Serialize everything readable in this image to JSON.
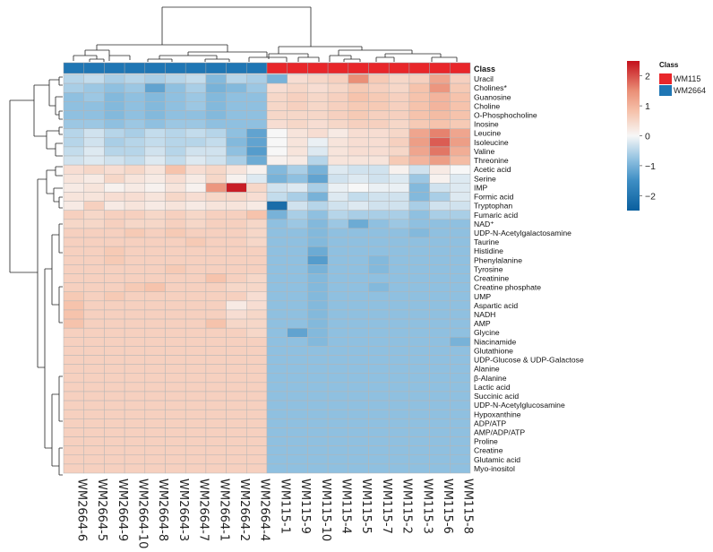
{
  "chart_data": {
    "type": "heatmap",
    "title": "",
    "annotation_title": "Class",
    "columns": [
      "WM2664-6",
      "WM2664-5",
      "WM2664-9",
      "WM2664-10",
      "WM2664-8",
      "WM2664-3",
      "WM2664-7",
      "WM2664-1",
      "WM2664-2",
      "WM2664-4",
      "WM115-1",
      "WM115-9",
      "WM115-10",
      "WM115-4",
      "WM115-5",
      "WM115-7",
      "WM115-2",
      "WM115-3",
      "WM115-6",
      "WM115-8"
    ],
    "column_classes": [
      "WM2664",
      "WM2664",
      "WM2664",
      "WM2664",
      "WM2664",
      "WM2664",
      "WM2664",
      "WM2664",
      "WM2664",
      "WM2664",
      "WM115",
      "WM115",
      "WM115",
      "WM115",
      "WM115",
      "WM115",
      "WM115",
      "WM115",
      "WM115",
      "WM115"
    ],
    "classes": [
      {
        "name": "WM115",
        "color": "#e8262a"
      },
      {
        "name": "WM2664",
        "color": "#1f76b4"
      }
    ],
    "rows": [
      "Uracil",
      "Cholines*",
      "Guanosine",
      "Choline",
      "O-Phosphocholine",
      "Inosine",
      "Leucine",
      "Isoleucine",
      "Valine",
      "Threonine",
      "Acetic acid",
      "Serine",
      "IMP",
      "Formic acid",
      "Tryptophan",
      "Fumaric acid",
      "NAD⁺",
      "UDP-N-Acetylgalactosamine",
      "Taurine",
      "Histidine",
      "Phenylalanine",
      "Tyrosine",
      "Creatinine",
      "Creatine phosphate",
      "UMP",
      "Aspartic acid",
      "NADH",
      "AMP",
      "Glycine",
      "Niacinamide",
      "Glutathione",
      "UDP-Glucose & UDP-Galactose",
      "Alanine",
      "β-Alanine",
      "Lactic acid",
      "Succinic acid",
      "UDP-N-Acetylglucosamine",
      "Hypoxanthine",
      "ADP/ATP",
      "AMP/ADP/ATP",
      "Proline",
      "Creatine",
      "Glutamic acid",
      "Myo-inositol"
    ],
    "values": [
      [
        -0.5,
        -0.4,
        -0.6,
        -0.5,
        -0.6,
        -0.5,
        -0.4,
        -0.9,
        -0.5,
        -0.6,
        -1.0,
        0.4,
        0.5,
        0.6,
        1.5,
        0.7,
        0.5,
        0.6,
        1.2,
        0.6
      ],
      [
        -0.6,
        -0.7,
        -0.8,
        -0.7,
        -1.2,
        -0.8,
        -0.6,
        -1.0,
        -0.9,
        -0.7,
        0.4,
        0.5,
        0.4,
        0.5,
        0.7,
        0.6,
        0.5,
        0.8,
        1.4,
        0.7
      ],
      [
        -0.8,
        -0.7,
        -0.9,
        -0.8,
        -0.9,
        -0.8,
        -0.7,
        -0.9,
        -0.8,
        -0.8,
        0.5,
        0.6,
        0.5,
        0.6,
        0.8,
        0.7,
        0.6,
        0.8,
        1.0,
        0.8
      ],
      [
        -0.8,
        -0.8,
        -0.9,
        -0.8,
        -0.9,
        -0.8,
        -0.7,
        -0.9,
        -0.8,
        -0.8,
        0.5,
        0.6,
        0.5,
        0.6,
        0.7,
        0.7,
        0.6,
        0.8,
        1.0,
        0.8
      ],
      [
        -0.8,
        -0.8,
        -0.9,
        -0.8,
        -0.9,
        -0.8,
        -0.8,
        -0.9,
        -0.8,
        -0.8,
        0.5,
        0.5,
        0.5,
        0.6,
        0.7,
        0.6,
        0.6,
        0.8,
        0.9,
        0.8
      ],
      [
        -0.7,
        -0.7,
        -0.8,
        -0.7,
        -0.8,
        -0.7,
        -0.7,
        -0.8,
        -0.8,
        -0.8,
        0.4,
        0.5,
        0.4,
        0.5,
        0.6,
        0.6,
        0.5,
        0.7,
        0.8,
        0.7
      ],
      [
        -0.5,
        -0.3,
        -0.5,
        -0.6,
        -0.4,
        -0.5,
        -0.4,
        -0.5,
        -0.8,
        -1.2,
        0.0,
        0.3,
        0.4,
        0.2,
        0.4,
        0.4,
        0.5,
        1.2,
        1.6,
        1.2
      ],
      [
        -0.5,
        -0.3,
        -0.6,
        -0.5,
        -0.4,
        -0.5,
        -0.5,
        -0.4,
        -0.9,
        -1.2,
        0.0,
        0.3,
        -0.1,
        0.3,
        0.4,
        0.4,
        0.6,
        1.3,
        1.9,
        1.3
      ],
      [
        -0.4,
        -0.2,
        -0.5,
        -0.5,
        -0.3,
        -0.5,
        -0.3,
        -0.3,
        -0.8,
        -1.3,
        0.0,
        0.3,
        -0.2,
        0.3,
        0.4,
        0.4,
        0.5,
        1.2,
        1.7,
        1.1
      ],
      [
        -0.3,
        -0.2,
        -0.3,
        -0.4,
        -0.2,
        -0.4,
        -0.2,
        -0.3,
        -0.6,
        -1.1,
        0.1,
        0.2,
        -0.5,
        0.3,
        0.3,
        0.3,
        0.7,
        1.0,
        1.3,
        0.9
      ],
      [
        0.4,
        0.5,
        0.4,
        0.5,
        0.3,
        0.8,
        0.4,
        0.5,
        0.3,
        0.1,
        -0.9,
        -0.6,
        -1.0,
        -0.2,
        -0.3,
        -0.3,
        0.1,
        -0.3,
        0.2,
        0.0
      ],
      [
        0.3,
        0.2,
        0.5,
        0.3,
        0.2,
        0.4,
        0.2,
        0.5,
        0.1,
        -0.2,
        -1.0,
        -0.8,
        -1.2,
        -0.3,
        -0.2,
        -0.3,
        -0.2,
        -0.7,
        0.1,
        -0.2
      ],
      [
        0.2,
        0.3,
        0.1,
        0.2,
        0.1,
        0.3,
        0.1,
        1.4,
        2.4,
        0.5,
        -0.3,
        -0.2,
        -0.6,
        -0.1,
        0.0,
        -0.1,
        -0.1,
        -0.9,
        -0.3,
        -0.2
      ],
      [
        0.3,
        0.3,
        0.4,
        0.4,
        0.3,
        0.5,
        0.4,
        0.5,
        0.5,
        0.4,
        -0.4,
        -0.6,
        -1.0,
        -0.2,
        -0.4,
        -0.3,
        -0.3,
        -0.9,
        -0.6,
        -0.2
      ],
      [
        0.2,
        0.6,
        0.2,
        0.3,
        0.2,
        0.3,
        0.2,
        0.3,
        0.3,
        0.2,
        -2.2,
        -0.3,
        -0.5,
        -0.3,
        -0.2,
        -0.3,
        -0.3,
        -0.6,
        -0.3,
        -0.3
      ],
      [
        0.6,
        0.5,
        0.6,
        0.6,
        0.5,
        0.6,
        0.5,
        0.6,
        0.6,
        0.8,
        -1.0,
        -0.6,
        -0.8,
        -0.5,
        -0.6,
        -0.6,
        -0.6,
        -0.8,
        -0.6,
        -0.6
      ],
      [
        0.5,
        0.5,
        0.6,
        0.5,
        0.5,
        0.6,
        0.5,
        0.6,
        0.6,
        0.5,
        -0.8,
        -0.7,
        -0.9,
        -0.7,
        -1.1,
        -0.8,
        -0.7,
        -0.8,
        -0.8,
        -0.8
      ],
      [
        0.6,
        0.6,
        0.6,
        0.7,
        0.6,
        0.7,
        0.6,
        0.6,
        0.6,
        0.5,
        -0.8,
        -0.8,
        -0.9,
        -0.8,
        -0.8,
        -0.8,
        -0.8,
        -0.9,
        -0.8,
        -0.8
      ],
      [
        0.6,
        0.6,
        0.6,
        0.6,
        0.6,
        0.6,
        0.7,
        0.6,
        0.6,
        0.5,
        -0.8,
        -0.8,
        -0.9,
        -0.8,
        -0.8,
        -0.8,
        -0.8,
        -0.8,
        -0.8,
        -0.8
      ],
      [
        0.6,
        0.6,
        0.7,
        0.6,
        0.6,
        0.6,
        0.6,
        0.6,
        0.6,
        0.6,
        -0.8,
        -0.8,
        -1.1,
        -0.8,
        -0.8,
        -0.8,
        -0.8,
        -0.8,
        -0.8,
        -0.8
      ],
      [
        0.6,
        0.6,
        0.7,
        0.6,
        0.6,
        0.6,
        0.6,
        0.6,
        0.6,
        0.6,
        -0.8,
        -0.8,
        -1.3,
        -0.8,
        -0.8,
        -0.9,
        -0.8,
        -0.8,
        -0.8,
        -0.8
      ],
      [
        0.6,
        0.6,
        0.6,
        0.6,
        0.6,
        0.7,
        0.6,
        0.6,
        0.6,
        0.6,
        -0.8,
        -0.8,
        -1.0,
        -0.8,
        -0.8,
        -0.9,
        -0.8,
        -0.8,
        -0.8,
        -0.8
      ],
      [
        0.6,
        0.6,
        0.6,
        0.6,
        0.6,
        0.6,
        0.6,
        0.8,
        0.6,
        0.5,
        -0.8,
        -0.8,
        -0.9,
        -0.8,
        -0.8,
        -0.8,
        -0.8,
        -0.8,
        -0.8,
        -0.8
      ],
      [
        0.6,
        0.6,
        0.6,
        0.7,
        0.8,
        0.6,
        0.6,
        0.6,
        0.5,
        0.5,
        -0.8,
        -0.8,
        -0.9,
        -0.8,
        -0.8,
        -0.9,
        -0.8,
        -0.8,
        -0.8,
        -0.8
      ],
      [
        0.7,
        0.6,
        0.7,
        0.6,
        0.6,
        0.6,
        0.6,
        0.6,
        0.6,
        0.4,
        -0.8,
        -0.8,
        -0.9,
        -0.8,
        -0.8,
        -0.8,
        -0.8,
        -0.8,
        -0.8,
        -0.8
      ],
      [
        0.8,
        0.6,
        0.6,
        0.6,
        0.6,
        0.6,
        0.6,
        0.6,
        0.2,
        0.4,
        -0.8,
        -0.8,
        -0.9,
        -0.8,
        -0.8,
        -0.8,
        -0.8,
        -0.8,
        -0.8,
        -0.8
      ],
      [
        0.8,
        0.6,
        0.6,
        0.6,
        0.6,
        0.6,
        0.6,
        0.6,
        0.4,
        0.5,
        -0.8,
        -0.8,
        -0.9,
        -0.8,
        -0.8,
        -0.8,
        -0.8,
        -0.8,
        -0.8,
        -0.8
      ],
      [
        0.8,
        0.6,
        0.6,
        0.6,
        0.6,
        0.6,
        0.6,
        0.8,
        0.5,
        0.5,
        -0.8,
        -0.8,
        -0.9,
        -0.8,
        -0.8,
        -0.8,
        -0.8,
        -0.8,
        -0.8,
        -0.8
      ],
      [
        0.6,
        0.6,
        0.6,
        0.6,
        0.6,
        0.6,
        0.6,
        0.6,
        0.6,
        0.5,
        -0.8,
        -1.2,
        -0.9,
        -0.8,
        -0.8,
        -0.8,
        -0.8,
        -0.8,
        -0.8,
        -0.8
      ],
      [
        0.6,
        0.6,
        0.6,
        0.6,
        0.6,
        0.6,
        0.6,
        0.6,
        0.6,
        0.6,
        -0.8,
        -0.8,
        -0.9,
        -0.8,
        -0.8,
        -0.8,
        -0.8,
        -0.8,
        -0.8,
        -1.0
      ],
      [
        0.6,
        0.6,
        0.6,
        0.6,
        0.6,
        0.6,
        0.6,
        0.6,
        0.6,
        0.6,
        -0.8,
        -0.8,
        -0.8,
        -0.8,
        -0.8,
        -0.8,
        -0.8,
        -0.8,
        -0.8,
        -0.8
      ],
      [
        0.6,
        0.6,
        0.6,
        0.6,
        0.6,
        0.6,
        0.6,
        0.6,
        0.6,
        0.6,
        -0.8,
        -0.8,
        -0.8,
        -0.8,
        -0.8,
        -0.8,
        -0.8,
        -0.8,
        -0.8,
        -0.8
      ],
      [
        0.6,
        0.6,
        0.6,
        0.6,
        0.6,
        0.6,
        0.6,
        0.6,
        0.6,
        0.6,
        -0.8,
        -0.8,
        -0.8,
        -0.8,
        -0.8,
        -0.8,
        -0.8,
        -0.8,
        -0.8,
        -0.8
      ],
      [
        0.6,
        0.6,
        0.6,
        0.6,
        0.6,
        0.6,
        0.6,
        0.6,
        0.6,
        0.6,
        -0.8,
        -0.8,
        -0.8,
        -0.8,
        -0.8,
        -0.8,
        -0.8,
        -0.8,
        -0.8,
        -0.8
      ],
      [
        0.6,
        0.6,
        0.6,
        0.6,
        0.6,
        0.6,
        0.6,
        0.6,
        0.6,
        0.6,
        -0.8,
        -0.8,
        -0.8,
        -0.8,
        -0.8,
        -0.8,
        -0.8,
        -0.8,
        -0.8,
        -0.8
      ],
      [
        0.6,
        0.6,
        0.6,
        0.6,
        0.6,
        0.6,
        0.6,
        0.6,
        0.6,
        0.6,
        -0.8,
        -0.8,
        -0.8,
        -0.8,
        -0.8,
        -0.8,
        -0.8,
        -0.8,
        -0.8,
        -0.8
      ],
      [
        0.6,
        0.6,
        0.6,
        0.6,
        0.6,
        0.6,
        0.6,
        0.6,
        0.6,
        0.6,
        -0.8,
        -0.8,
        -0.8,
        -0.8,
        -0.8,
        -0.8,
        -0.8,
        -0.8,
        -0.8,
        -0.8
      ],
      [
        0.6,
        0.6,
        0.6,
        0.6,
        0.6,
        0.6,
        0.6,
        0.6,
        0.6,
        0.6,
        -0.8,
        -0.8,
        -0.8,
        -0.8,
        -0.8,
        -0.8,
        -0.8,
        -0.8,
        -0.8,
        -0.8
      ],
      [
        0.6,
        0.6,
        0.6,
        0.6,
        0.6,
        0.6,
        0.6,
        0.6,
        0.6,
        0.6,
        -0.8,
        -0.8,
        -0.8,
        -0.8,
        -0.8,
        -0.8,
        -0.8,
        -0.8,
        -0.8,
        -0.8
      ],
      [
        0.6,
        0.6,
        0.6,
        0.6,
        0.6,
        0.6,
        0.6,
        0.6,
        0.6,
        0.6,
        -0.8,
        -0.8,
        -0.8,
        -0.8,
        -0.8,
        -0.8,
        -0.8,
        -0.8,
        -0.8,
        -0.8
      ],
      [
        0.6,
        0.6,
        0.6,
        0.6,
        0.6,
        0.6,
        0.6,
        0.6,
        0.6,
        0.6,
        -0.8,
        -0.8,
        -0.8,
        -0.8,
        -0.8,
        -0.8,
        -0.8,
        -0.8,
        -0.8,
        -0.8
      ],
      [
        0.6,
        0.6,
        0.6,
        0.6,
        0.6,
        0.6,
        0.6,
        0.6,
        0.6,
        0.6,
        -0.8,
        -0.8,
        -0.8,
        -0.8,
        -0.8,
        -0.8,
        -0.8,
        -0.8,
        -0.8,
        -0.8
      ],
      [
        0.6,
        0.6,
        0.6,
        0.6,
        0.6,
        0.6,
        0.6,
        0.6,
        0.6,
        0.6,
        -0.8,
        -0.8,
        -0.8,
        -0.8,
        -0.8,
        -0.8,
        -0.8,
        -0.8,
        -0.8,
        -0.8
      ],
      [
        0.6,
        0.6,
        0.6,
        0.6,
        0.6,
        0.6,
        0.6,
        0.6,
        0.6,
        0.6,
        -0.8,
        -0.8,
        -0.8,
        -0.8,
        -0.8,
        -0.8,
        -0.8,
        -0.8,
        -0.8,
        -0.8
      ]
    ],
    "color_scale": {
      "min": -2.5,
      "max": 2.5,
      "stops": [
        {
          "value": -2.5,
          "color": "#0a5f9e"
        },
        {
          "value": -1.5,
          "color": "#3e8ec4"
        },
        {
          "value": -0.8,
          "color": "#8fc0e0"
        },
        {
          "value": 0,
          "color": "#f7f7f7"
        },
        {
          "value": 0.8,
          "color": "#f6c3ac"
        },
        {
          "value": 1.5,
          "color": "#ea8f77"
        },
        {
          "value": 2.5,
          "color": "#c4101c"
        }
      ]
    },
    "legend_ticks": [
      "2",
      "1",
      "0",
      "−1",
      "−2"
    ],
    "legend_tick_values": [
      2,
      1,
      0,
      -1,
      -2
    ],
    "legend_position": "right",
    "dendrogram": {
      "rows": true,
      "columns": true
    }
  }
}
